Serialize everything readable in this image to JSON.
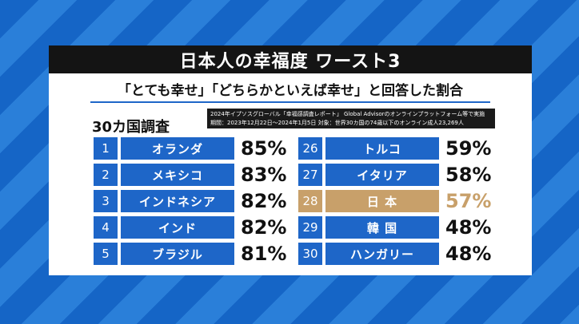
{
  "title": "日本人の幸福度 ワースト3",
  "subtitle": "「とても幸せ」「どちらかといえば幸せ」と回答した割合",
  "survey_count": "30カ国調査",
  "source": {
    "line1": "2024年イプソスグローバル「幸福感調査レポート」 Global Advisorのオンラインプラットフォーム等で実施",
    "line2": "期間：2023年12月22日～2024年1月5日 対象：世界30カ国の74歳以下のオンライン成人23,269人"
  },
  "colors": {
    "accent": "#1e66c8",
    "highlight": "#c8a06a",
    "title_bar": "#141414"
  },
  "left_rows": [
    {
      "rank": "1",
      "country": "オランダ",
      "pct": "85%"
    },
    {
      "rank": "2",
      "country": "メキシコ",
      "pct": "83%"
    },
    {
      "rank": "3",
      "country": "インドネシア",
      "pct": "82%"
    },
    {
      "rank": "4",
      "country": "インド",
      "pct": "82%"
    },
    {
      "rank": "5",
      "country": "ブラジル",
      "pct": "81%"
    }
  ],
  "right_rows": [
    {
      "rank": "26",
      "country": "トルコ",
      "pct": "59%"
    },
    {
      "rank": "27",
      "country": "イタリア",
      "pct": "58%"
    },
    {
      "rank": "28",
      "country": "日 本",
      "pct": "57%",
      "highlight": true
    },
    {
      "rank": "29",
      "country": "韓 国",
      "pct": "48%"
    },
    {
      "rank": "30",
      "country": "ハンガリー",
      "pct": "48%"
    }
  ]
}
